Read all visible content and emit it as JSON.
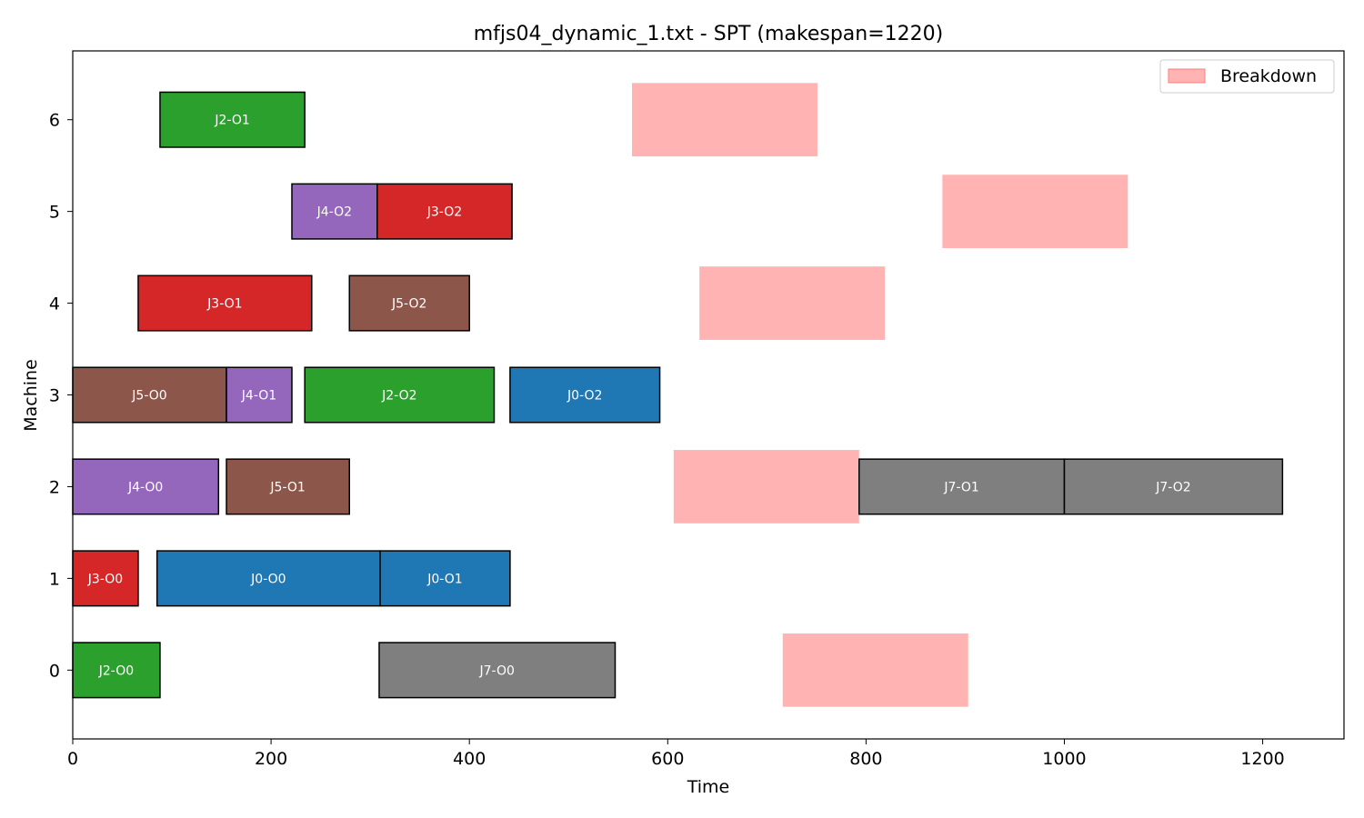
{
  "chart_data": {
    "type": "gantt",
    "title": "mfjs04_dynamic_1.txt - SPT (makespan=1220)",
    "xlabel": "Time",
    "ylabel": "Machine",
    "xlim": [
      0,
      1282
    ],
    "ylim": [
      -0.75,
      6.75
    ],
    "xticks": [
      0,
      200,
      400,
      600,
      800,
      1000,
      1200
    ],
    "yticks": [
      0,
      1,
      2,
      3,
      4,
      5,
      6
    ],
    "grid": false,
    "legend": {
      "position": "top-right",
      "entries": [
        {
          "label": "Breakdown",
          "color": "#ffb3b3"
        }
      ]
    },
    "job_colors": {
      "J0": "#1f77b4",
      "J2": "#2ca02c",
      "J3": "#d62728",
      "J4": "#9467bd",
      "J5": "#8c564b",
      "J7": "#7f7f7f"
    },
    "operations": [
      {
        "label": "J2-O0",
        "job": "J2",
        "machine": 0,
        "start": 0,
        "end": 88
      },
      {
        "label": "J7-O0",
        "job": "J7",
        "machine": 0,
        "start": 309,
        "end": 547
      },
      {
        "label": "J3-O0",
        "job": "J3",
        "machine": 1,
        "start": 0,
        "end": 66
      },
      {
        "label": "J0-O0",
        "job": "J0",
        "machine": 1,
        "start": 85,
        "end": 310
      },
      {
        "label": "J0-O1",
        "job": "J0",
        "machine": 1,
        "start": 310,
        "end": 441
      },
      {
        "label": "J4-O0",
        "job": "J4",
        "machine": 2,
        "start": 0,
        "end": 147
      },
      {
        "label": "J5-O1",
        "job": "J5",
        "machine": 2,
        "start": 155,
        "end": 279
      },
      {
        "label": "J7-O1",
        "job": "J7",
        "machine": 2,
        "start": 793,
        "end": 1000
      },
      {
        "label": "J7-O2",
        "job": "J7",
        "machine": 2,
        "start": 1000,
        "end": 1220
      },
      {
        "label": "J5-O0",
        "job": "J5",
        "machine": 3,
        "start": 0,
        "end": 155
      },
      {
        "label": "J4-O1",
        "job": "J4",
        "machine": 3,
        "start": 155,
        "end": 221
      },
      {
        "label": "J2-O2",
        "job": "J2",
        "machine": 3,
        "start": 234,
        "end": 425
      },
      {
        "label": "J0-O2",
        "job": "J0",
        "machine": 3,
        "start": 441,
        "end": 592
      },
      {
        "label": "J3-O1",
        "job": "J3",
        "machine": 4,
        "start": 66,
        "end": 241
      },
      {
        "label": "J5-O2",
        "job": "J5",
        "machine": 4,
        "start": 279,
        "end": 400
      },
      {
        "label": "J4-O2",
        "job": "J4",
        "machine": 5,
        "start": 221,
        "end": 307
      },
      {
        "label": "J3-O2",
        "job": "J3",
        "machine": 5,
        "start": 307,
        "end": 443
      },
      {
        "label": "J2-O1",
        "job": "J2",
        "machine": 6,
        "start": 88,
        "end": 234
      }
    ],
    "breakdowns": [
      {
        "machine": 0,
        "start": 716,
        "end": 903
      },
      {
        "machine": 2,
        "start": 606,
        "end": 793
      },
      {
        "machine": 4,
        "start": 632,
        "end": 819
      },
      {
        "machine": 5,
        "start": 877,
        "end": 1064
      },
      {
        "machine": 6,
        "start": 564,
        "end": 751
      }
    ]
  }
}
